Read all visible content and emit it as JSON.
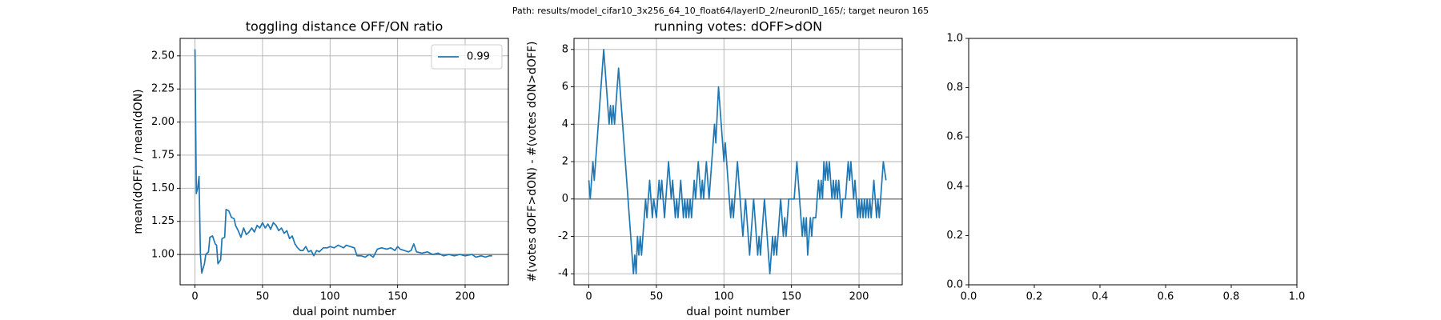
{
  "title": "Path: results/model_cifar10_3x256_64_10_float64/layerID_2/neuronID_165/; target neuron 165",
  "chart_data": [
    {
      "type": "line",
      "title": "toggling distance OFF/ON ratio",
      "xlabel": "dual point number",
      "ylabel": "mean(dOFF) / mean(dON)",
      "x": [
        0,
        1,
        2,
        3,
        4,
        5,
        7,
        8,
        10,
        11,
        13,
        15,
        16,
        17,
        19,
        20,
        22,
        23,
        25,
        27,
        29,
        30,
        32,
        34,
        36,
        38,
        40,
        42,
        44,
        46,
        48,
        50,
        52,
        54,
        56,
        58,
        60,
        62,
        64,
        66,
        68,
        70,
        72,
        74,
        76,
        78,
        80,
        82,
        84,
        86,
        88,
        90,
        92,
        95,
        98,
        100,
        103,
        106,
        108,
        110,
        112,
        115,
        118,
        120,
        123,
        126,
        129,
        132,
        135,
        138,
        142,
        145,
        148,
        150,
        152,
        155,
        158,
        160,
        162,
        164,
        168,
        172,
        176,
        180,
        184,
        188,
        192,
        196,
        200,
        205,
        208,
        212,
        215,
        218,
        220
      ],
      "series": [
        {
          "name": "0.99",
          "color": "#1f77b4",
          "values": [
            2.55,
            1.46,
            1.5,
            1.59,
            1.0,
            0.86,
            0.93,
            1.0,
            1.02,
            1.13,
            1.14,
            1.08,
            1.07,
            0.93,
            0.96,
            1.12,
            1.13,
            1.34,
            1.33,
            1.28,
            1.27,
            1.22,
            1.18,
            1.13,
            1.2,
            1.15,
            1.17,
            1.2,
            1.17,
            1.22,
            1.2,
            1.24,
            1.2,
            1.23,
            1.19,
            1.24,
            1.22,
            1.18,
            1.2,
            1.16,
            1.18,
            1.12,
            1.14,
            1.08,
            1.05,
            1.03,
            1.03,
            1.06,
            1.02,
            1.03,
            0.99,
            1.03,
            1.02,
            1.05,
            1.05,
            1.06,
            1.05,
            1.07,
            1.06,
            1.05,
            1.07,
            1.06,
            1.05,
            0.99,
            0.99,
            0.98,
            1.0,
            0.98,
            1.04,
            1.05,
            1.04,
            1.05,
            1.03,
            1.06,
            1.04,
            1.03,
            1.02,
            1.03,
            1.08,
            1.02,
            1.01,
            1.02,
            1.0,
            1.01,
            0.99,
            1.0,
            0.99,
            1.0,
            0.99,
            1.0,
            0.98,
            0.99,
            0.98,
            0.99,
            0.99
          ]
        }
      ],
      "hline": 1.0,
      "hline_color": "#808080",
      "xlim": [
        -11,
        232
      ],
      "ylim": [
        0.771,
        2.632
      ],
      "xticks": [
        0,
        50,
        100,
        150,
        200
      ],
      "yticks": [
        {
          "value": 1,
          "label": "1.00"
        },
        {
          "value": 1.25,
          "label": "1.25"
        },
        {
          "value": 1.5,
          "label": "1.50"
        },
        {
          "value": 1.75,
          "label": "1.75"
        },
        {
          "value": 2,
          "label": "2.00"
        },
        {
          "value": 2.25,
          "label": "2.25"
        },
        {
          "value": 2.5,
          "label": "2.50"
        }
      ],
      "grid": true,
      "legend": "upper right"
    },
    {
      "type": "line",
      "title": "running votes: dOFF>dON",
      "xlabel": "dual point number",
      "ylabel": "#(votes dOFF>dON) - #(votes dON>dOFF)",
      "x": [
        0,
        1,
        2,
        3,
        4,
        11,
        13,
        14,
        15,
        16,
        17,
        18,
        19,
        20,
        22,
        33,
        34,
        35,
        36,
        37,
        38,
        39,
        40,
        42,
        43,
        45,
        46,
        47,
        48,
        50,
        51,
        52,
        53,
        54,
        56,
        57,
        59,
        60,
        61,
        62,
        64,
        65,
        66,
        68,
        69,
        70,
        71,
        72,
        73,
        74,
        75,
        76,
        77,
        78,
        79,
        81,
        82,
        83,
        84,
        85,
        87,
        88,
        89,
        90,
        92,
        93,
        94,
        96,
        100,
        101,
        102,
        104,
        105,
        106,
        107,
        108,
        110,
        112,
        114,
        115,
        116,
        117,
        119,
        120,
        122,
        123,
        125,
        126,
        127,
        128,
        130,
        132,
        134,
        136,
        137,
        138,
        139,
        140,
        142,
        144,
        145,
        146,
        148,
        152,
        154,
        156,
        157,
        158,
        159,
        160,
        161,
        162,
        164,
        165,
        166,
        168,
        170,
        171,
        172,
        173,
        174,
        175,
        176,
        177,
        178,
        180,
        181,
        182,
        183,
        184,
        185,
        187,
        188,
        190,
        192,
        193,
        194,
        196,
        197,
        198,
        199,
        200,
        201,
        202,
        203,
        204,
        205,
        206,
        207,
        208,
        209,
        211,
        212,
        213,
        214,
        215,
        217,
        218,
        220
      ],
      "series": [
        {
          "color": "#1f77b4",
          "values": [
            1,
            0,
            1,
            2,
            1,
            8,
            6,
            5,
            4,
            5,
            4,
            5,
            4,
            5,
            7,
            -4,
            -3,
            -4,
            -2,
            -3,
            -2,
            -3,
            -2,
            0,
            -1,
            1,
            0,
            -1,
            0,
            -1,
            0,
            1,
            0,
            1,
            -1,
            0,
            2,
            1,
            0,
            1,
            -1,
            0,
            -1,
            1,
            0,
            -1,
            0,
            -1,
            0,
            -1,
            0,
            -1,
            0,
            1,
            0,
            2,
            1,
            0,
            1,
            0,
            2,
            1,
            0,
            1,
            3,
            4,
            3,
            6,
            2,
            3,
            2,
            0,
            -1,
            0,
            -1,
            0,
            2,
            0,
            -2,
            -1,
            0,
            -1,
            -3,
            -2,
            0,
            -1,
            -3,
            -2,
            -3,
            -2,
            0,
            -2,
            -4,
            -2,
            -3,
            -2,
            -3,
            -2,
            0,
            -2,
            -1,
            -2,
            0,
            0,
            2,
            0,
            -1,
            -2,
            -1,
            -2,
            -1,
            -3,
            -1,
            -2,
            -1,
            -1,
            1,
            0,
            1,
            0,
            2,
            1,
            2,
            1,
            2,
            0,
            1,
            0,
            1,
            0,
            1,
            -1,
            0,
            0,
            2,
            1,
            2,
            0,
            1,
            0,
            -1,
            0,
            -1,
            0,
            -1,
            0,
            -1,
            0,
            -1,
            0,
            -1,
            1,
            0,
            -1,
            0,
            -1,
            1,
            2,
            1
          ]
        }
      ],
      "hline": 0,
      "hline_color": "#808080",
      "xlim": [
        -11,
        232
      ],
      "ylim": [
        -4.59,
        8.59
      ],
      "xticks": [
        0,
        50,
        100,
        150,
        200
      ],
      "yticks": [
        -4,
        -2,
        0,
        2,
        4,
        6,
        8
      ],
      "grid": true
    },
    {
      "type": "empty",
      "xlim": [
        0,
        1
      ],
      "ylim": [
        0,
        1
      ],
      "xticks": [
        {
          "value": 0,
          "label": "0.0"
        },
        {
          "value": 0.2,
          "label": "0.2"
        },
        {
          "value": 0.4,
          "label": "0.4"
        },
        {
          "value": 0.6,
          "label": "0.6"
        },
        {
          "value": 0.8,
          "label": "0.8"
        },
        {
          "value": 1,
          "label": "1.0"
        }
      ],
      "yticks": [
        {
          "value": 0,
          "label": "0.0"
        },
        {
          "value": 0.2,
          "label": "0.2"
        },
        {
          "value": 0.4,
          "label": "0.4"
        },
        {
          "value": 0.6,
          "label": "0.6"
        },
        {
          "value": 0.8,
          "label": "0.8"
        },
        {
          "value": 1,
          "label": "1.0"
        }
      ],
      "grid": false
    }
  ]
}
